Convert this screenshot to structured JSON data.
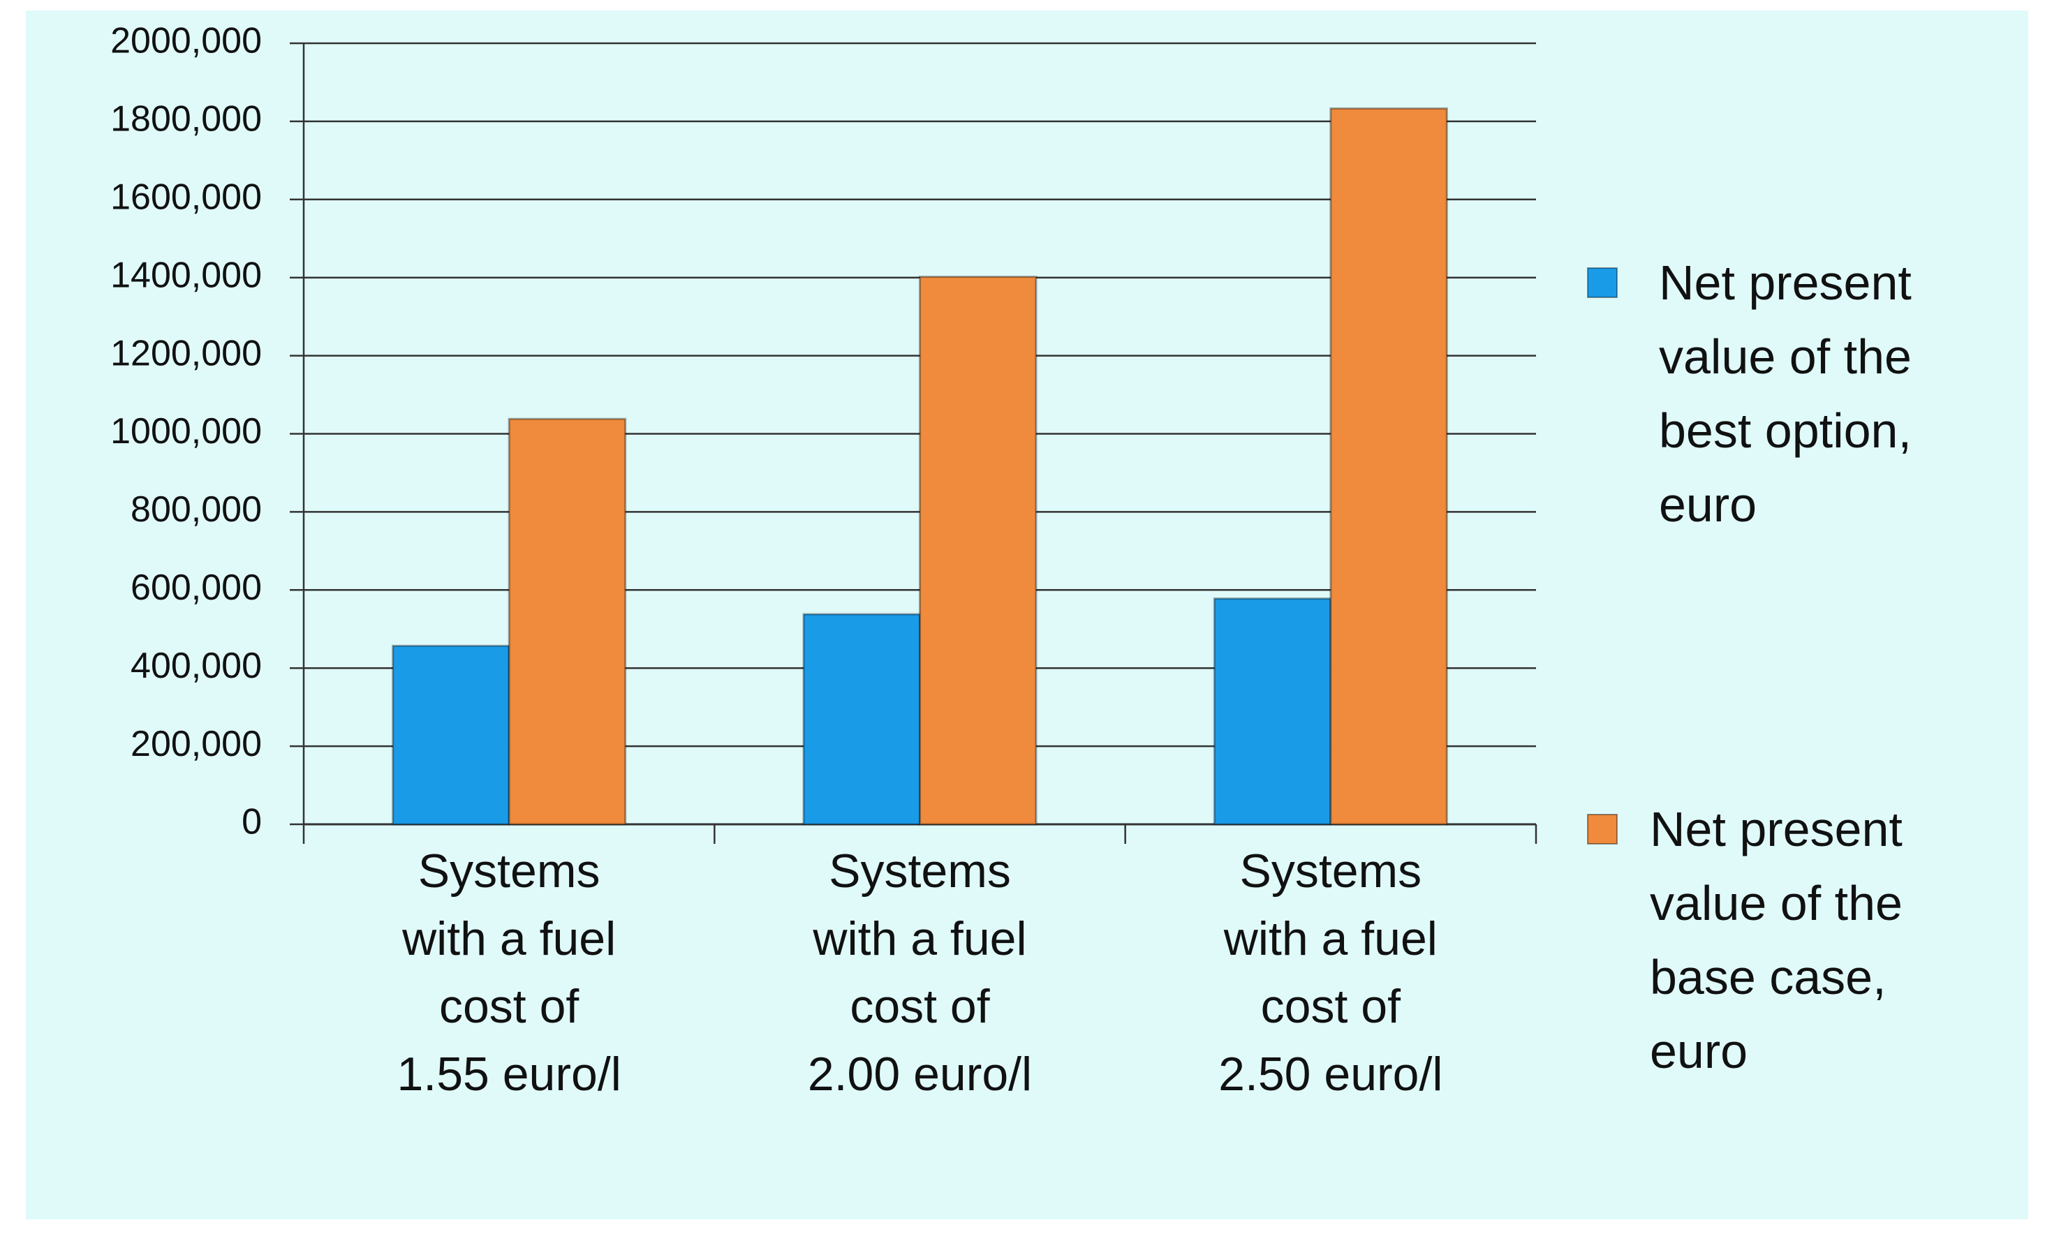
{
  "chart_data": {
    "type": "bar",
    "categories": [
      "Systems\nwith a fuel\ncost of\n1.55 euro/l",
      "Systems\nwith a fuel\ncost of\n2.00 euro/l",
      "Systems\nwith a fuel\ncost of\n2.50 euro/l"
    ],
    "series": [
      {
        "name": "Net present\nvalue of the\nbest option,\neuro",
        "color": "#1a9be8",
        "values": [
          457000,
          538000,
          578000
        ]
      },
      {
        "name": "Net present\nvalue of the\nbase case,\neuro",
        "color": "#f08a3c",
        "values": [
          1038000,
          1402000,
          1833000
        ]
      }
    ],
    "ylim": [
      0,
      2000000
    ],
    "yticks": [
      0,
      {
        "value": 200000,
        "label": "200,000"
      },
      {
        "value": 400000,
        "label": "400,000"
      },
      {
        "value": 600000,
        "label": "600,000"
      },
      {
        "value": 800000,
        "label": "800,000"
      },
      {
        "value": 1000000,
        "label": "1000,000"
      },
      {
        "value": 1200000,
        "label": "1200,000"
      },
      {
        "value": 1400000,
        "label": "1400,000"
      },
      {
        "value": 1600000,
        "label": "1600,000"
      },
      {
        "value": 1800000,
        "label": "1800,000"
      },
      {
        "value": 2000000,
        "label": "2000,000"
      }
    ],
    "grid": true
  }
}
